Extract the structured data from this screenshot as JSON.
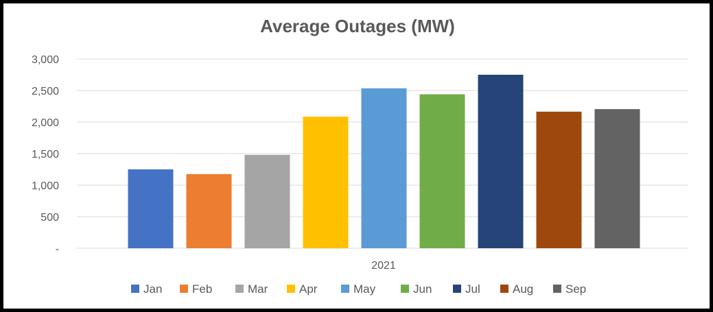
{
  "chart_data": {
    "type": "bar",
    "title": "Average Outages (MW)",
    "xlabel": "",
    "ylabel": "",
    "categories": [
      "2021"
    ],
    "series": [
      {
        "name": "Jan",
        "values": [
          1250
        ],
        "color": "#4472C4"
      },
      {
        "name": "Feb",
        "values": [
          1175
        ],
        "color": "#ED7D31"
      },
      {
        "name": "Mar",
        "values": [
          1480
        ],
        "color": "#A5A5A5"
      },
      {
        "name": "Apr",
        "values": [
          2085
        ],
        "color": "#FFC000"
      },
      {
        "name": "May",
        "values": [
          2535
        ],
        "color": "#5B9BD5"
      },
      {
        "name": "Jun",
        "values": [
          2440
        ],
        "color": "#70AD47"
      },
      {
        "name": "Jul",
        "values": [
          2750
        ],
        "color": "#264478"
      },
      {
        "name": "Aug",
        "values": [
          2165
        ],
        "color": "#9E480E"
      },
      {
        "name": "Sep",
        "values": [
          2205
        ],
        "color": "#636363"
      }
    ],
    "ylim": [
      0,
      3000
    ],
    "yticks": [
      0,
      500,
      1000,
      1500,
      2000,
      2500,
      3000
    ],
    "ytick_labels": [
      "-",
      "500",
      "1,000",
      "1,500",
      "2,000",
      "2,500",
      "3,000"
    ],
    "grid": true,
    "legend_position": "bottom"
  }
}
